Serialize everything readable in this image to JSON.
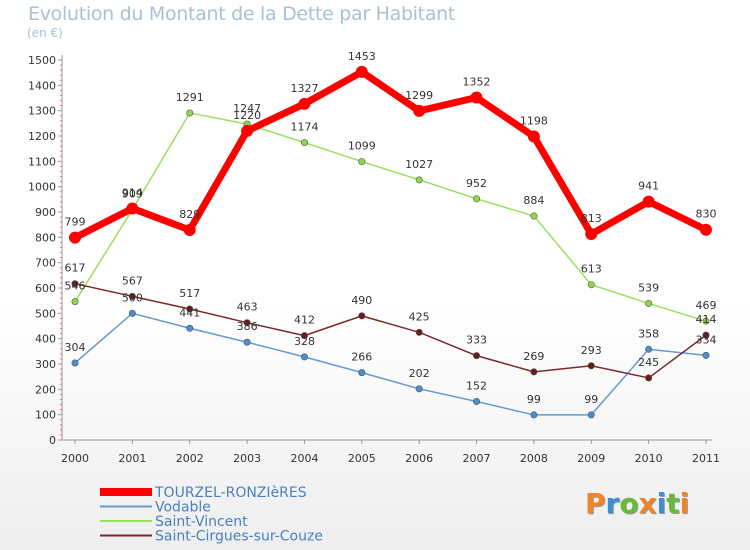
{
  "header": {
    "title": "Evolution du Montant de la Dette par Habitant",
    "subtitle": "(en €)"
  },
  "logo": {
    "text": "Proxiti",
    "colors": [
      "#f0842a",
      "#3c8fd6",
      "#6ab83c",
      "#f0842a",
      "#3c8fd6",
      "#6ab83c",
      "#f0842a"
    ]
  },
  "chart_data": {
    "type": "line",
    "categories": [
      "2000",
      "2001",
      "2002",
      "2003",
      "2004",
      "2005",
      "2006",
      "2007",
      "2008",
      "2009",
      "2010",
      "2011"
    ],
    "ylim": [
      0,
      1500
    ],
    "yticks": [
      0,
      100,
      200,
      300,
      400,
      500,
      600,
      700,
      800,
      900,
      1000,
      1100,
      1200,
      1300,
      1400,
      1500
    ],
    "grid": false,
    "legend_position": "bottom-left",
    "series": [
      {
        "name": "TOURZEL-RONZIèRES",
        "color": "#ff0000",
        "width": 7,
        "values": [
          799,
          914,
          829,
          1220,
          1327,
          1453,
          1299,
          1352,
          1198,
          813,
          941,
          830
        ]
      },
      {
        "name": "Vodable",
        "color": "#6699cc",
        "width": 1.5,
        "values": [
          304,
          500,
          441,
          386,
          328,
          266,
          202,
          152,
          99,
          99,
          358,
          334
        ]
      },
      {
        "name": "Saint-Vincent",
        "color": "#99e060",
        "width": 1.5,
        "values": [
          546,
          909,
          1291,
          1247,
          1174,
          1099,
          1027,
          952,
          884,
          613,
          539,
          469
        ]
      },
      {
        "name": "Saint-Cirgues-sur-Couze",
        "color": "#7a2a2a",
        "width": 1.5,
        "values": [
          617,
          567,
          517,
          463,
          412,
          490,
          425,
          333,
          269,
          293,
          245,
          414
        ]
      }
    ]
  }
}
